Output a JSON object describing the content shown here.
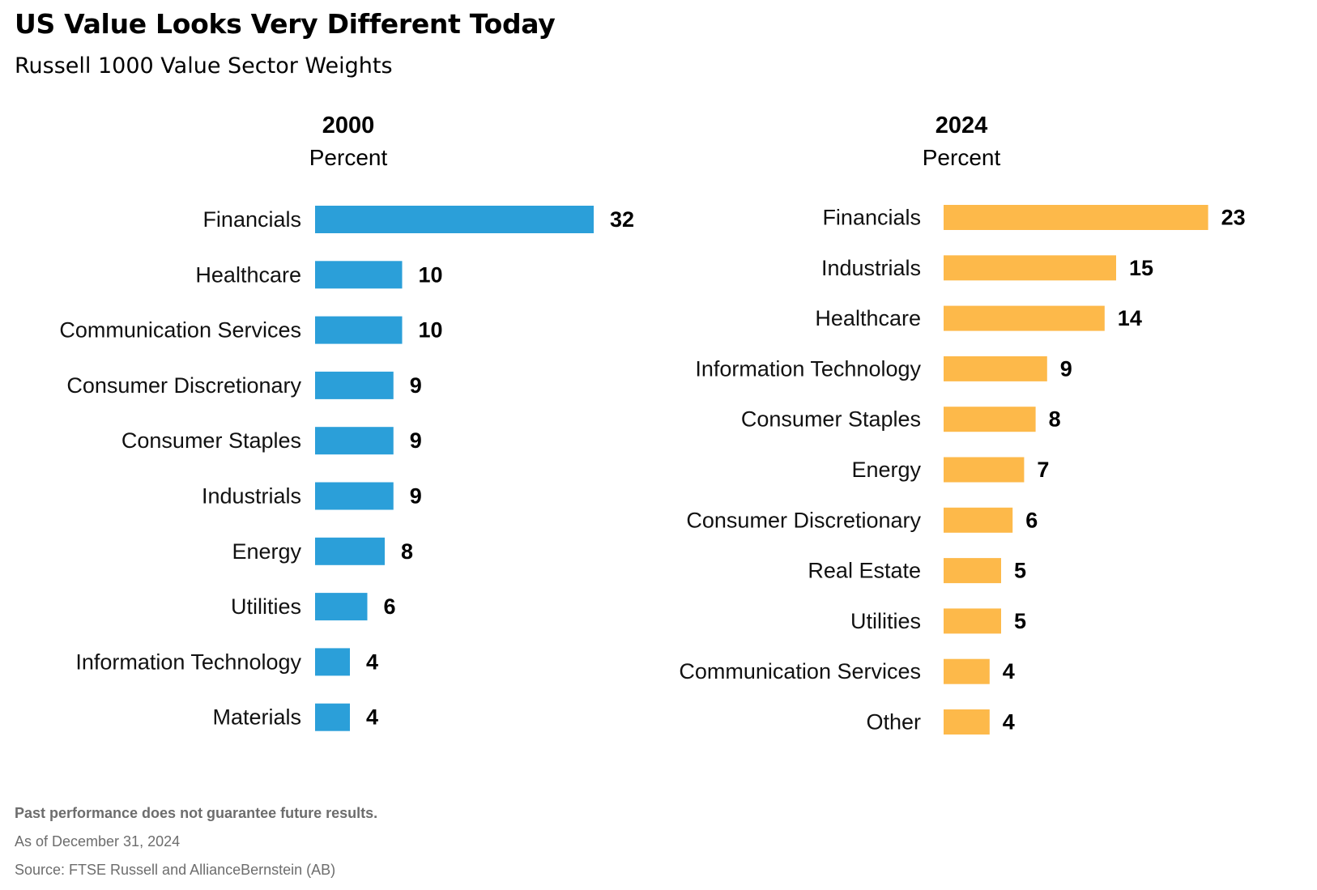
{
  "title": "US Value Looks Very Different Today",
  "subtitle": "Russell 1000 Value Sector Weights",
  "notes": {
    "disclaimer": "Past performance does not guarantee future results.",
    "as_of": "As of December 31, 2024",
    "source": "Source: FTSE Russell and AllianceBernstein (AB)"
  },
  "chart_data": [
    {
      "type": "bar",
      "orientation": "horizontal",
      "title": "2000",
      "unit_label": "Percent",
      "color": "#2b9fd9",
      "categories": [
        "Financials",
        "Healthcare",
        "Communication Services",
        "Consumer Discretionary",
        "Consumer Staples",
        "Industrials",
        "Energy",
        "Utilities",
        "Information Technology",
        "Materials"
      ],
      "values": [
        32,
        10,
        10,
        9,
        9,
        9,
        8,
        6,
        4,
        4
      ],
      "data_labels": [
        "32",
        "10",
        "10",
        "9",
        "9",
        "9",
        "8",
        "6",
        "4",
        "4"
      ],
      "grid": false,
      "legend": "none"
    },
    {
      "type": "bar",
      "orientation": "horizontal",
      "title": "2024",
      "unit_label": "Percent",
      "color": "#fdb94a",
      "categories": [
        "Financials",
        "Industrials",
        "Healthcare",
        "Information Technology",
        "Consumer Staples",
        "Energy",
        "Consumer Discretionary",
        "Real Estate",
        "Utilities",
        "Communication Services",
        "Other"
      ],
      "values": [
        23,
        15,
        14,
        9,
        8,
        7,
        6,
        5,
        5,
        4,
        4
      ],
      "data_labels": [
        "23",
        "15",
        "14",
        "9",
        "8",
        "7",
        "6",
        "5",
        "5",
        "4",
        "4"
      ],
      "grid": false,
      "legend": "none"
    }
  ]
}
